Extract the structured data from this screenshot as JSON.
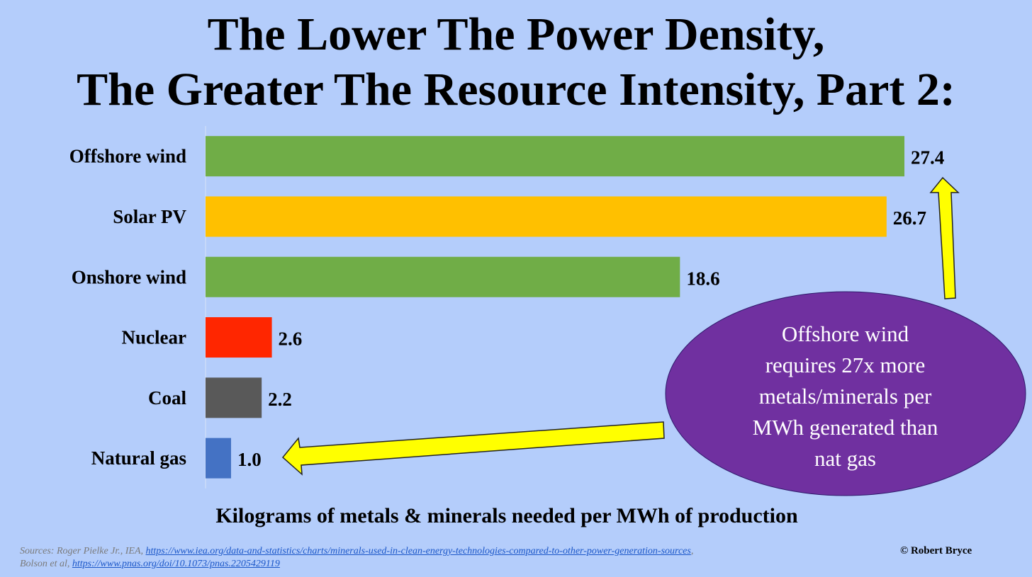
{
  "title_lines": [
    "The Lower The Power Density,",
    "The Greater The Resource Intensity, Part 2:"
  ],
  "chart_data": {
    "type": "bar",
    "orientation": "horizontal",
    "categories": [
      "Offshore wind",
      "Solar PV",
      "Onshore wind",
      "Nuclear",
      "Coal",
      "Natural gas"
    ],
    "values": [
      27.4,
      26.7,
      18.6,
      2.6,
      2.2,
      1.0
    ],
    "value_labels": [
      "27.4",
      "26.7",
      "18.6",
      "2.6",
      "2.2",
      "1.0"
    ],
    "bar_colors": [
      "#70ad47",
      "#ffc000",
      "#70ad47",
      "#ff2600",
      "#595959",
      "#4472c4"
    ],
    "xlabel": "Kilograms of metals & minerals needed per MWh of production",
    "ylabel": "",
    "xlim": [
      0,
      27.4
    ],
    "grid": false,
    "legend": "none"
  },
  "callout": {
    "text": "Offshore wind requires 27x more metals/minerals per MWh generated than nat gas",
    "lines": [
      "Offshore wind",
      "requires 27x more",
      "metals/minerals per",
      "MWh generated than",
      "nat gas"
    ],
    "color": "#7030a0",
    "arrow_color": "#ffff00"
  },
  "sources": {
    "prefix_1": "Sources: Roger Pielke Jr., IEA, ",
    "link_1": "https://www.iea.org/data-and-statistics/charts/minerals-used-in-clean-energy-technologies-compared-to-other-power-generation-sources",
    "suffix_1": ",",
    "prefix_2": "Bolson et al, ",
    "link_2": "https://www.pnas.org/doi/10.1073/pnas.2205429119"
  },
  "copyright": "© Robert Bryce",
  "colors": {
    "background": "#b4cdfb"
  }
}
